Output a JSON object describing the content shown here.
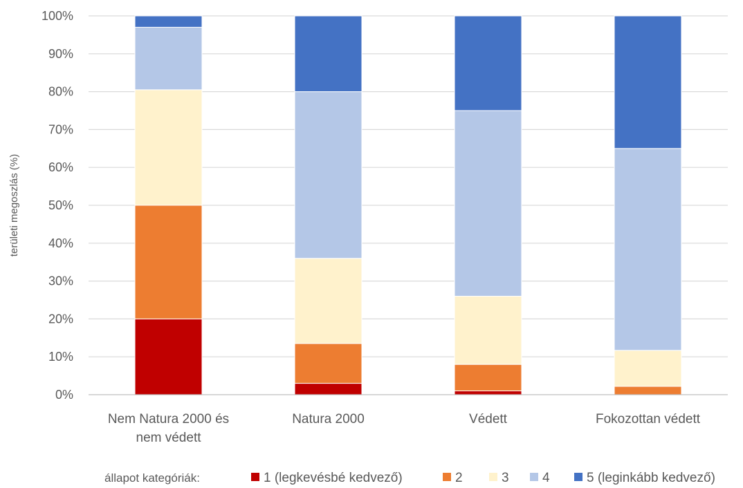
{
  "chart_data": {
    "type": "bar",
    "stacked": true,
    "percent": true,
    "title": "",
    "xlabel": "",
    "ylabel": "területi megoszlás (%)",
    "ylim": [
      0,
      100
    ],
    "yticks": [
      "0%",
      "10%",
      "20%",
      "30%",
      "40%",
      "50%",
      "60%",
      "70%",
      "80%",
      "90%",
      "100%"
    ],
    "grid": true,
    "categories": [
      [
        "Nem Natura 2000 és",
        "nem védett"
      ],
      [
        "Natura 2000"
      ],
      [
        "Védett"
      ],
      [
        "Fokozottan védett"
      ]
    ],
    "series": [
      {
        "name": "1 (legkevésbé kedvező)",
        "color": "#c00000",
        "values": [
          20,
          3,
          1,
          0
        ]
      },
      {
        "name": "2",
        "color": "#ed7d31",
        "values": [
          30,
          10.5,
          7,
          2.2
        ]
      },
      {
        "name": "3",
        "color": "#fff2cc",
        "values": [
          30.5,
          22.5,
          18,
          9.5
        ]
      },
      {
        "name": "4",
        "color": "#b4c7e7",
        "values": [
          16.5,
          44,
          49,
          53.3
        ]
      },
      {
        "name": "5 (leginkább kedvező)",
        "color": "#4472c4",
        "values": [
          3,
          20,
          25,
          35
        ]
      }
    ],
    "legend": {
      "position": "bottom",
      "title": "állapot kategóriák:"
    }
  }
}
